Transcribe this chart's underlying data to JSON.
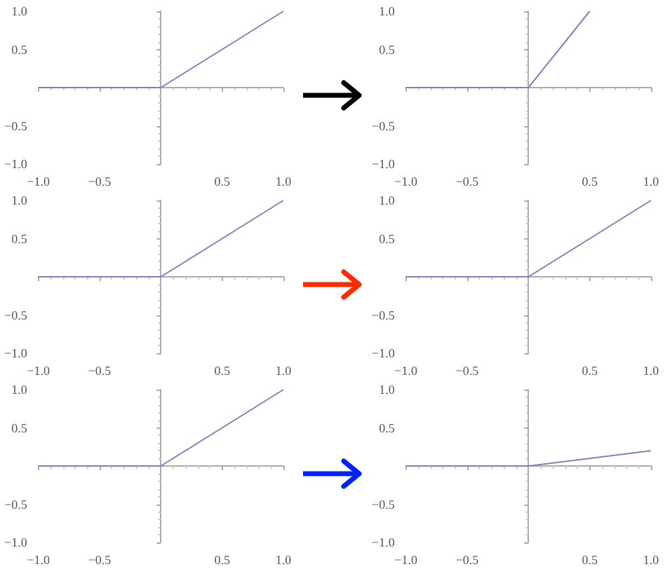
{
  "chart_data": [
    {
      "type": "line",
      "x": [
        -1,
        0,
        1
      ],
      "values": [
        0,
        0,
        1
      ],
      "color": "#8080c0",
      "xlim": [
        -1,
        1
      ],
      "ylim": [
        -1,
        1
      ],
      "xticks": [
        {
          "value": -1,
          "label": "−1.0"
        },
        {
          "value": -0.5,
          "label": "−0.5"
        },
        {
          "value": 0.5,
          "label": "0.5"
        },
        {
          "value": 1,
          "label": "1.0"
        }
      ],
      "yticks": [
        {
          "value": -1,
          "label": "−1.0"
        },
        {
          "value": -0.5,
          "label": "−0.5"
        },
        {
          "value": 0.5,
          "label": "0.5"
        },
        {
          "value": 1,
          "label": "1.0"
        }
      ],
      "grid": false,
      "marker": "none"
    },
    {
      "type": "line",
      "x": [
        -1,
        0,
        0.5
      ],
      "values": [
        0,
        0,
        1
      ],
      "color": "#8080c0",
      "xlim": [
        -1,
        1
      ],
      "ylim": [
        -1,
        1
      ],
      "xticks": [
        {
          "value": -1,
          "label": "−1.0"
        },
        {
          "value": -0.5,
          "label": "−0.5"
        },
        {
          "value": 0.5,
          "label": "0.5"
        },
        {
          "value": 1,
          "label": "1.0"
        }
      ],
      "yticks": [
        {
          "value": -1,
          "label": "−1.0"
        },
        {
          "value": -0.5,
          "label": "−0.5"
        },
        {
          "value": 0.5,
          "label": "0.5"
        },
        {
          "value": 1,
          "label": "1.0"
        }
      ],
      "grid": false,
      "marker": "none"
    },
    {
      "type": "line",
      "x": [
        -1,
        0,
        1
      ],
      "values": [
        0,
        0,
        1
      ],
      "color": "#8080c0",
      "xlim": [
        -1,
        1
      ],
      "ylim": [
        -1,
        1
      ],
      "xticks": [
        {
          "value": -1,
          "label": "−1.0"
        },
        {
          "value": -0.5,
          "label": "−0.5"
        },
        {
          "value": 0.5,
          "label": "0.5"
        },
        {
          "value": 1,
          "label": "1.0"
        }
      ],
      "yticks": [
        {
          "value": -1,
          "label": "−1.0"
        },
        {
          "value": -0.5,
          "label": "−0.5"
        },
        {
          "value": 0.5,
          "label": "0.5"
        },
        {
          "value": 1,
          "label": "1.0"
        }
      ],
      "grid": false,
      "marker": "none"
    },
    {
      "type": "line",
      "x": [
        -1,
        0,
        1
      ],
      "values": [
        0,
        0,
        1
      ],
      "color": "#8080c0",
      "xlim": [
        -1,
        1
      ],
      "ylim": [
        -1,
        1
      ],
      "xticks": [
        {
          "value": -1,
          "label": "−1.0"
        },
        {
          "value": -0.5,
          "label": "−0.5"
        },
        {
          "value": 0.5,
          "label": "0.5"
        },
        {
          "value": 1,
          "label": "1.0"
        }
      ],
      "yticks": [
        {
          "value": -1,
          "label": "−1.0"
        },
        {
          "value": -0.5,
          "label": "−0.5"
        },
        {
          "value": 0.5,
          "label": "0.5"
        },
        {
          "value": 1,
          "label": "1.0"
        }
      ],
      "grid": false,
      "marker": "none"
    },
    {
      "type": "line",
      "x": [
        -1,
        0,
        1
      ],
      "values": [
        0,
        0,
        1
      ],
      "color": "#8080c0",
      "xlim": [
        -1,
        1
      ],
      "ylim": [
        -1,
        1
      ],
      "xticks": [
        {
          "value": -1,
          "label": "−1.0"
        },
        {
          "value": -0.5,
          "label": "−0.5"
        },
        {
          "value": 0.5,
          "label": "0.5"
        },
        {
          "value": 1,
          "label": "1.0"
        }
      ],
      "yticks": [
        {
          "value": -1,
          "label": "−1.0"
        },
        {
          "value": -0.5,
          "label": "−0.5"
        },
        {
          "value": 0.5,
          "label": "0.5"
        },
        {
          "value": 1,
          "label": "1.0"
        }
      ],
      "grid": false,
      "marker": "none"
    },
    {
      "type": "line",
      "x": [
        -1,
        0,
        1
      ],
      "values": [
        0,
        0,
        0.2
      ],
      "color": "#8080c0",
      "xlim": [
        -1,
        1
      ],
      "ylim": [
        -1,
        1
      ],
      "xticks": [
        {
          "value": -1,
          "label": "−1.0"
        },
        {
          "value": -0.5,
          "label": "−0.5"
        },
        {
          "value": 0.5,
          "label": "0.5"
        },
        {
          "value": 1,
          "label": "1.0"
        }
      ],
      "yticks": [
        {
          "value": -1,
          "label": "−1.0"
        },
        {
          "value": -0.5,
          "label": "−0.5"
        },
        {
          "value": 0.5,
          "label": "0.5"
        },
        {
          "value": 1,
          "label": "1.0"
        }
      ],
      "grid": false,
      "marker": "none"
    }
  ]
}
